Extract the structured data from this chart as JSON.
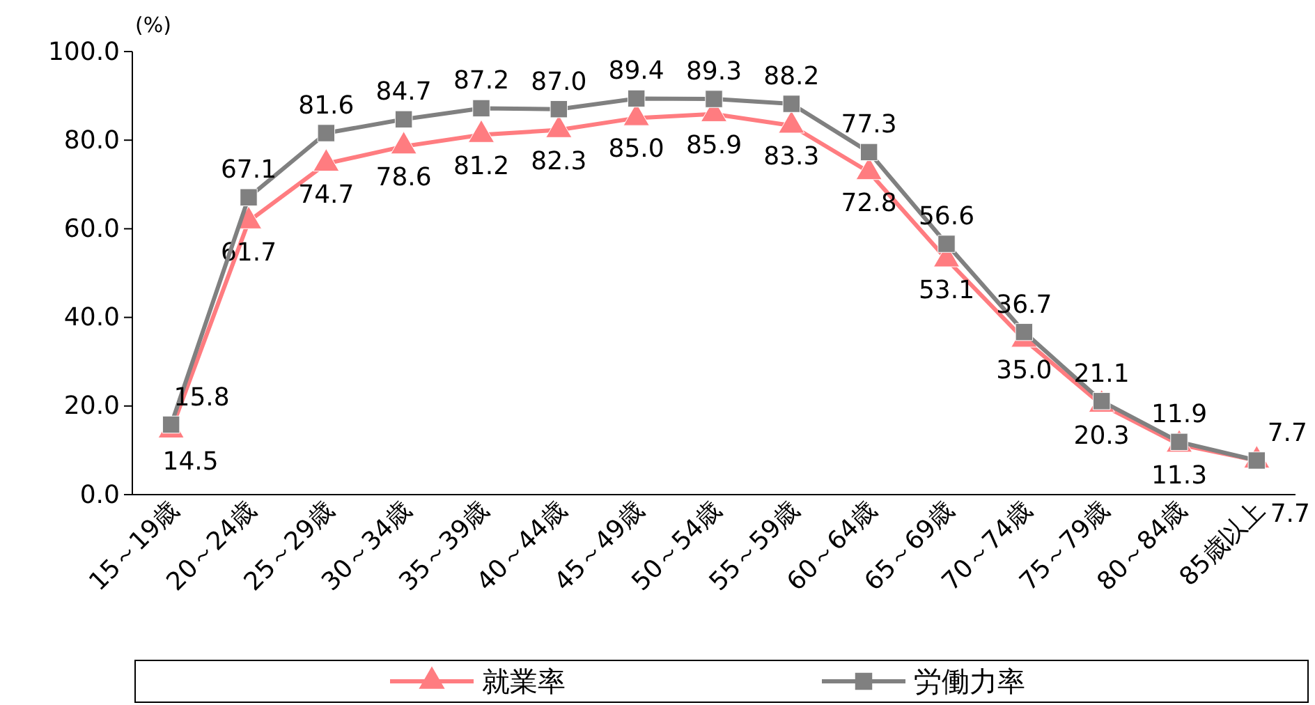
{
  "chart_data": {
    "type": "line",
    "ylabel": "(%)",
    "categories": [
      "15～19歳",
      "20～24歳",
      "25～29歳",
      "30～34歳",
      "35～39歳",
      "40～44歳",
      "45～49歳",
      "50～54歳",
      "55～59歳",
      "60～64歳",
      "65～69歳",
      "70～74歳",
      "75～79歳",
      "80～84歳",
      "85歳以上"
    ],
    "series": [
      {
        "name": "就業率",
        "color": "#ff7c80",
        "marker": "triangle",
        "values": [
          14.5,
          61.7,
          74.7,
          78.6,
          81.2,
          82.3,
          85.0,
          85.9,
          83.3,
          72.8,
          53.1,
          35.0,
          20.3,
          11.3,
          7.7
        ],
        "value_labels": [
          "14.5",
          "61.7",
          "74.7",
          "78.6",
          "81.2",
          "82.3",
          "85.0",
          "85.9",
          "83.3",
          "72.8",
          "53.1",
          "35.0",
          "20.3",
          "11.3",
          "7.7"
        ]
      },
      {
        "name": "労働力率",
        "color": "#808080",
        "marker": "square",
        "values": [
          15.8,
          67.1,
          81.6,
          84.7,
          87.2,
          87.0,
          89.4,
          89.3,
          88.2,
          77.3,
          56.6,
          36.7,
          21.1,
          11.9,
          7.7
        ],
        "value_labels": [
          "15.8",
          "67.1",
          "81.6",
          "84.7",
          "87.2",
          "87.0",
          "89.4",
          "89.3",
          "88.2",
          "77.3",
          "56.6",
          "36.7",
          "21.1",
          "11.9",
          "7.7"
        ]
      }
    ],
    "ylim": [
      0,
      100
    ],
    "yticks": [
      {
        "value": 0,
        "label": "0.0"
      },
      {
        "value": 20,
        "label": "20.0"
      },
      {
        "value": 40,
        "label": "40.0"
      },
      {
        "value": 60,
        "label": "60.0"
      },
      {
        "value": 80,
        "label": "80.0"
      },
      {
        "value": 100,
        "label": "100.0"
      }
    ],
    "grid": false,
    "legend": "bottom",
    "line_style": "solid"
  }
}
